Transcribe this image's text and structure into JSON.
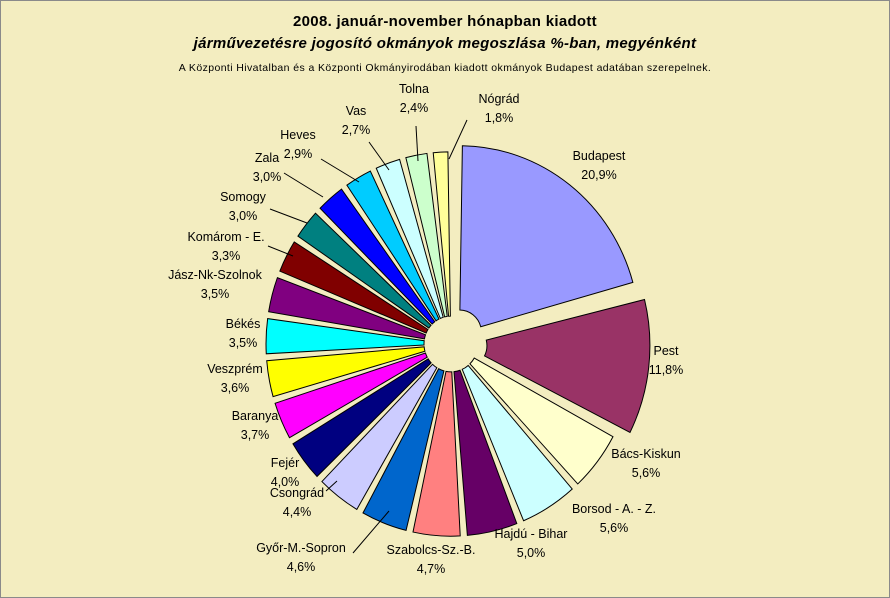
{
  "chart_data": {
    "type": "pie",
    "title_line1": "2008. január-november hónapban kiadott",
    "title_line2": "járművezetésre jogosító okmányok megoszlása %-ban, megyénként",
    "subtitle": "A Központi Hivatalban és a Központi Okmányirodában kiadott okmányok Budapest adatában szerepelnek.",
    "slices": [
      {
        "name": "Budapest",
        "pct_label": "20,9%",
        "value": 20.9,
        "color": "#9999ff"
      },
      {
        "name": "Pest",
        "pct_label": "11,8%",
        "value": 11.8,
        "color": "#993366"
      },
      {
        "name": "Bács-Kiskun",
        "pct_label": "5,6%",
        "value": 5.6,
        "color": "#ffffcc"
      },
      {
        "name": "Borsod - A. - Z.",
        "pct_label": "5,6%",
        "value": 5.6,
        "color": "#ccffff"
      },
      {
        "name": "Hajdú - Bihar",
        "pct_label": "5,0%",
        "value": 5.0,
        "color": "#660066"
      },
      {
        "name": "Szabolcs-Sz.-B.",
        "pct_label": "4,7%",
        "value": 4.7,
        "color": "#ff8080"
      },
      {
        "name": "Győr-M.-Sopron",
        "pct_label": "4,6%",
        "value": 4.6,
        "color": "#0066cc"
      },
      {
        "name": "Csongrád",
        "pct_label": "4,4%",
        "value": 4.4,
        "color": "#ccccff"
      },
      {
        "name": "Fejér",
        "pct_label": "4,0%",
        "value": 4.0,
        "color": "#000080"
      },
      {
        "name": "Baranya",
        "pct_label": "3,7%",
        "value": 3.7,
        "color": "#ff00ff"
      },
      {
        "name": "Veszprém",
        "pct_label": "3,6%",
        "value": 3.6,
        "color": "#ffff00"
      },
      {
        "name": "Békés",
        "pct_label": "3,5%",
        "value": 3.5,
        "color": "#00ffff"
      },
      {
        "name": "Jász-Nk-Szolnok",
        "pct_label": "3,5%",
        "value": 3.5,
        "color": "#800080"
      },
      {
        "name": "Komárom - E.",
        "pct_label": "3,3%",
        "value": 3.3,
        "color": "#800000"
      },
      {
        "name": "Somogy",
        "pct_label": "3,0%",
        "value": 3.0,
        "color": "#008080"
      },
      {
        "name": "Zala",
        "pct_label": "3,0%",
        "value": 3.0,
        "color": "#0000ff"
      },
      {
        "name": "Heves",
        "pct_label": "2,9%",
        "value": 2.9,
        "color": "#00ccff"
      },
      {
        "name": "Vas",
        "pct_label": "2,7%",
        "value": 2.7,
        "color": "#ccffff"
      },
      {
        "name": "Tolna",
        "pct_label": "2,4%",
        "value": 2.4,
        "color": "#ccffcc"
      },
      {
        "name": "Nógrád",
        "pct_label": "1,8%",
        "value": 1.8,
        "color": "#ffff99"
      }
    ]
  }
}
